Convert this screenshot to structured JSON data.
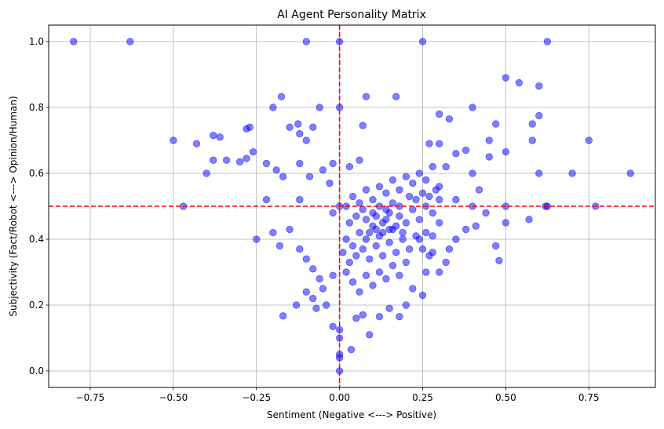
{
  "chart_data": {
    "type": "scatter",
    "title": "AI Agent Personality Matrix",
    "xlabel": "Sentiment (Negative <---> Positive)",
    "ylabel": "Subjectivity (Fact/Robot <---> Opinion/Human)",
    "xlim": [
      -0.875,
      0.95
    ],
    "ylim": [
      -0.05,
      1.05
    ],
    "xticks": [
      -0.75,
      -0.5,
      -0.25,
      0.0,
      0.25,
      0.5,
      0.75
    ],
    "xtick_labels": [
      "−0.75",
      "−0.50",
      "−0.25",
      "0.00",
      "0.25",
      "0.50",
      "0.75"
    ],
    "yticks": [
      0.0,
      0.2,
      0.4,
      0.6,
      0.8,
      1.0
    ],
    "ytick_labels": [
      "0.0",
      "0.2",
      "0.4",
      "0.6",
      "0.8",
      "1.0"
    ],
    "grid": true,
    "point_color": "#0000ff",
    "point_alpha": 0.5,
    "reference_lines": [
      {
        "axis": "x",
        "value": 0.0,
        "color": "#ff0000",
        "style": "dashed"
      },
      {
        "axis": "y",
        "value": 0.5,
        "color": "#ff0000",
        "style": "dashed"
      }
    ],
    "series": [
      {
        "points": [
          [
            -0.8,
            1.0
          ],
          [
            -0.63,
            1.0
          ],
          [
            -0.1,
            1.0
          ],
          [
            0.0,
            1.0
          ],
          [
            0.25,
            1.0
          ],
          [
            0.625,
            1.0
          ],
          [
            0.5,
            0.89
          ],
          [
            0.54,
            0.875
          ],
          [
            0.6,
            0.865
          ],
          [
            0.08,
            0.833
          ],
          [
            0.17,
            0.833
          ],
          [
            -0.175,
            0.833
          ],
          [
            -0.2,
            0.8
          ],
          [
            -0.06,
            0.8
          ],
          [
            0.0,
            0.8
          ],
          [
            0.4,
            0.8
          ],
          [
            0.6,
            0.775
          ],
          [
            0.33,
            0.765
          ],
          [
            0.3,
            0.78
          ],
          [
            0.47,
            0.75
          ],
          [
            0.58,
            0.75
          ],
          [
            -0.125,
            0.75
          ],
          [
            -0.27,
            0.74
          ],
          [
            -0.28,
            0.735
          ],
          [
            -0.08,
            0.74
          ],
          [
            0.07,
            0.745
          ],
          [
            -0.38,
            0.715
          ],
          [
            -0.36,
            0.71
          ],
          [
            -0.12,
            0.72
          ],
          [
            -0.15,
            0.74
          ],
          [
            0.45,
            0.7
          ],
          [
            0.58,
            0.7
          ],
          [
            0.75,
            0.7
          ],
          [
            -0.5,
            0.7
          ],
          [
            -0.43,
            0.69
          ],
          [
            -0.1,
            0.7
          ],
          [
            -0.38,
            0.64
          ],
          [
            -0.34,
            0.64
          ],
          [
            -0.3,
            0.635
          ],
          [
            -0.26,
            0.665
          ],
          [
            -0.28,
            0.645
          ],
          [
            -0.4,
            0.6
          ],
          [
            0.7,
            0.6
          ],
          [
            0.875,
            0.6
          ],
          [
            0.6,
            0.6
          ],
          [
            0.5,
            0.665
          ],
          [
            -0.19,
            0.61
          ],
          [
            -0.17,
            0.59
          ],
          [
            -0.22,
            0.63
          ],
          [
            -0.12,
            0.63
          ],
          [
            -0.09,
            0.59
          ],
          [
            -0.05,
            0.61
          ],
          [
            -0.03,
            0.57
          ],
          [
            -0.02,
            0.63
          ],
          [
            0.03,
            0.62
          ],
          [
            0.06,
            0.64
          ],
          [
            -0.47,
            0.5
          ],
          [
            -0.22,
            0.52
          ],
          [
            -0.12,
            0.52
          ],
          [
            -0.02,
            0.48
          ],
          [
            0.0,
            0.5
          ],
          [
            0.625,
            0.5
          ],
          [
            0.77,
            0.5
          ],
          [
            0.5,
            0.5
          ],
          [
            0.4,
            0.5
          ],
          [
            0.35,
            0.52
          ],
          [
            0.62,
            0.5
          ],
          [
            0.57,
            0.46
          ],
          [
            0.5,
            0.45
          ],
          [
            0.44,
            0.48
          ],
          [
            0.41,
            0.44
          ],
          [
            -0.25,
            0.4
          ],
          [
            -0.2,
            0.42
          ],
          [
            -0.18,
            0.38
          ],
          [
            -0.15,
            0.43
          ],
          [
            -0.12,
            0.37
          ],
          [
            -0.1,
            0.34
          ],
          [
            -0.08,
            0.31
          ],
          [
            -0.06,
            0.28
          ],
          [
            -0.05,
            0.25
          ],
          [
            -0.02,
            0.29
          ],
          [
            -0.13,
            0.2
          ],
          [
            -0.1,
            0.24
          ],
          [
            -0.08,
            0.22
          ],
          [
            -0.07,
            0.19
          ],
          [
            -0.04,
            0.2
          ],
          [
            -0.17,
            0.167
          ],
          [
            -0.02,
            0.135
          ],
          [
            0.0,
            0.125
          ],
          [
            0.0,
            0.1
          ],
          [
            0.0,
            0.05
          ],
          [
            0.0,
            0.04
          ],
          [
            0.0,
            0.0
          ],
          [
            0.035,
            0.065
          ],
          [
            0.09,
            0.11
          ],
          [
            0.12,
            0.165
          ],
          [
            0.07,
            0.17
          ],
          [
            0.05,
            0.16
          ],
          [
            0.15,
            0.19
          ],
          [
            0.18,
            0.165
          ],
          [
            0.2,
            0.2
          ],
          [
            0.22,
            0.25
          ],
          [
            0.25,
            0.23
          ],
          [
            0.26,
            0.3
          ],
          [
            0.3,
            0.3
          ],
          [
            0.32,
            0.33
          ],
          [
            0.33,
            0.37
          ],
          [
            0.35,
            0.4
          ],
          [
            0.38,
            0.43
          ],
          [
            0.3,
            0.45
          ],
          [
            0.28,
            0.36
          ],
          [
            0.48,
            0.335
          ],
          [
            0.47,
            0.38
          ],
          [
            0.4,
            0.6
          ],
          [
            0.45,
            0.65
          ],
          [
            0.42,
            0.55
          ],
          [
            0.38,
            0.67
          ],
          [
            0.35,
            0.66
          ],
          [
            0.32,
            0.62
          ],
          [
            0.3,
            0.69
          ],
          [
            0.27,
            0.69
          ],
          [
            0.02,
            0.3
          ],
          [
            0.04,
            0.27
          ],
          [
            0.06,
            0.24
          ],
          [
            0.08,
            0.29
          ],
          [
            0.1,
            0.26
          ],
          [
            0.12,
            0.3
          ],
          [
            0.14,
            0.28
          ],
          [
            0.16,
            0.32
          ],
          [
            0.18,
            0.29
          ],
          [
            0.2,
            0.33
          ],
          [
            0.02,
            0.4
          ],
          [
            0.04,
            0.38
          ],
          [
            0.06,
            0.42
          ],
          [
            0.08,
            0.4
          ],
          [
            0.1,
            0.44
          ],
          [
            0.12,
            0.41
          ],
          [
            0.14,
            0.46
          ],
          [
            0.16,
            0.43
          ],
          [
            0.18,
            0.47
          ],
          [
            0.2,
            0.45
          ],
          [
            0.22,
            0.49
          ],
          [
            0.24,
            0.46
          ],
          [
            0.26,
            0.5
          ],
          [
            0.28,
            0.48
          ],
          [
            0.3,
            0.52
          ],
          [
            0.02,
            0.5
          ],
          [
            0.04,
            0.53
          ],
          [
            0.06,
            0.51
          ],
          [
            0.08,
            0.55
          ],
          [
            0.1,
            0.52
          ],
          [
            0.12,
            0.56
          ],
          [
            0.14,
            0.54
          ],
          [
            0.16,
            0.58
          ],
          [
            0.18,
            0.55
          ],
          [
            0.2,
            0.59
          ],
          [
            0.22,
            0.57
          ],
          [
            0.24,
            0.6
          ],
          [
            0.26,
            0.58
          ],
          [
            0.28,
            0.62
          ],
          [
            0.3,
            0.56
          ],
          [
            0.05,
            0.35
          ],
          [
            0.07,
            0.37
          ],
          [
            0.09,
            0.34
          ],
          [
            0.11,
            0.38
          ],
          [
            0.13,
            0.35
          ],
          [
            0.15,
            0.39
          ],
          [
            0.17,
            0.36
          ],
          [
            0.19,
            0.4
          ],
          [
            0.21,
            0.37
          ],
          [
            0.23,
            0.41
          ],
          [
            0.1,
            0.48
          ],
          [
            0.12,
            0.5
          ],
          [
            0.14,
            0.49
          ],
          [
            0.16,
            0.51
          ],
          [
            0.18,
            0.5
          ],
          [
            0.08,
            0.46
          ],
          [
            0.11,
            0.47
          ],
          [
            0.13,
            0.45
          ],
          [
            0.15,
            0.48
          ],
          [
            0.17,
            0.44
          ],
          [
            0.09,
            0.42
          ],
          [
            0.11,
            0.43
          ],
          [
            0.13,
            0.42
          ],
          [
            0.15,
            0.43
          ],
          [
            0.19,
            0.42
          ],
          [
            0.03,
            0.45
          ],
          [
            0.05,
            0.47
          ],
          [
            0.07,
            0.49
          ],
          [
            0.01,
            0.36
          ],
          [
            0.03,
            0.33
          ],
          [
            0.21,
            0.53
          ],
          [
            0.23,
            0.52
          ],
          [
            0.25,
            0.54
          ],
          [
            0.27,
            0.53
          ],
          [
            0.29,
            0.55
          ],
          [
            0.24,
            0.4
          ],
          [
            0.26,
            0.42
          ],
          [
            0.28,
            0.41
          ],
          [
            0.25,
            0.37
          ],
          [
            0.27,
            0.35
          ]
        ]
      }
    ]
  }
}
